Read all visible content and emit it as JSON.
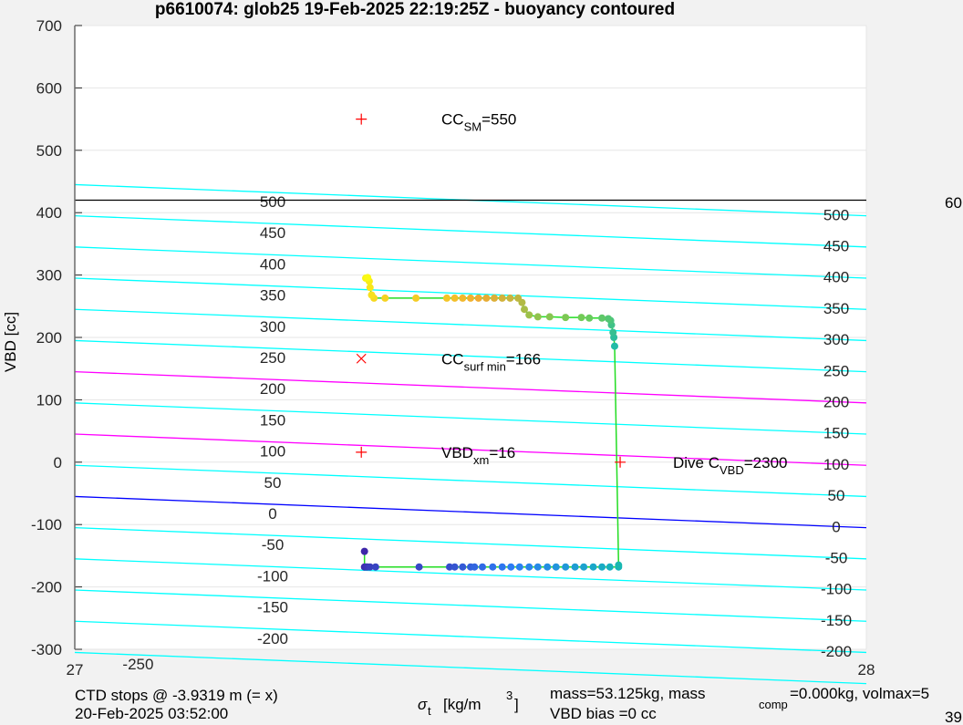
{
  "chart_data": {
    "type": "scatter",
    "title": "p6610074: glob25 19-Feb-2025 22:19:25Z - buoyancy contoured",
    "xlabel": {
      "main": "σ",
      "sub": "t",
      "unit": "[kg/m",
      "sup": "3",
      "close": "]"
    },
    "ylabel": "VBD [cc]",
    "xlim": [
      27,
      28
    ],
    "ylim": [
      -300,
      700
    ],
    "xticks": [
      27,
      28
    ],
    "xtick_labels": [
      "27",
      "28"
    ],
    "yticks": [
      -300,
      -200,
      -100,
      0,
      100,
      200,
      300,
      400,
      500,
      600,
      700
    ],
    "ytick_labels": [
      "-300",
      "-200",
      "-100",
      "0",
      "100",
      "200",
      "300",
      "400",
      "500",
      "600",
      "700"
    ],
    "grid": true,
    "contours": {
      "levels": [
        -250,
        -200,
        -150,
        -100,
        -50,
        0,
        50,
        100,
        150,
        200,
        250,
        300,
        350,
        400,
        450,
        500
      ],
      "labels_left": [
        "-250",
        "-200",
        "-150",
        "-100",
        "-50",
        "0",
        "50",
        "100",
        "150",
        "200",
        "250",
        "300",
        "350",
        "400",
        "450",
        "500"
      ],
      "labels_right": [
        "-200",
        "-150",
        "-100",
        "-50",
        "0",
        "50",
        "100",
        "150",
        "200",
        "250",
        "300",
        "350",
        "400",
        "450",
        "500"
      ],
      "vbd_at_x27_offset": 0,
      "slope_cc_per_sigma": -50,
      "base_vbd_at_level0_x27": -55,
      "colors": {
        "default": "#00ffff",
        "highlight": "#ff00ff",
        "zero": "#0000ff"
      },
      "highlight_levels": [
        100,
        200
      ],
      "zero_level": 0
    },
    "reference_line": {
      "vbd": 420,
      "color": "#000000"
    },
    "trajectory": {
      "line_color": "#22dd22",
      "colormap": "parula",
      "points": [
        [
          27.366,
          -143
        ],
        [
          27.366,
          -168
        ],
        [
          27.368,
          -168
        ],
        [
          27.37,
          -168
        ],
        [
          27.373,
          -168
        ],
        [
          27.38,
          -168
        ],
        [
          27.435,
          -168
        ],
        [
          27.4735,
          -168
        ],
        [
          27.48,
          -168
        ],
        [
          27.49,
          -168
        ],
        [
          27.5,
          -168
        ],
        [
          27.505,
          -168
        ],
        [
          27.515,
          -168
        ],
        [
          27.528,
          -168
        ],
        [
          27.54,
          -168
        ],
        [
          27.551,
          -168
        ],
        [
          27.562,
          -168
        ],
        [
          27.574,
          -168
        ],
        [
          27.585,
          -168
        ],
        [
          27.597,
          -168
        ],
        [
          27.608,
          -168
        ],
        [
          27.62,
          -168
        ],
        [
          27.632,
          -168
        ],
        [
          27.643,
          -168
        ],
        [
          27.655,
          -168
        ],
        [
          27.666,
          -168
        ],
        [
          27.676,
          -168
        ],
        [
          27.687,
          -168
        ],
        [
          27.687,
          -165
        ],
        [
          27.682,
          186
        ],
        [
          27.681,
          200
        ],
        [
          27.68,
          208
        ],
        [
          27.678,
          220
        ],
        [
          27.677,
          227
        ],
        [
          27.674,
          230
        ],
        [
          27.666,
          231
        ],
        [
          27.65,
          231
        ],
        [
          27.64,
          232
        ],
        [
          27.62,
          232
        ],
        [
          27.6,
          233
        ],
        [
          27.585,
          233
        ],
        [
          27.574,
          236
        ],
        [
          27.568,
          245
        ],
        [
          27.565,
          256
        ],
        [
          27.56,
          263
        ],
        [
          27.55,
          263
        ],
        [
          27.54,
          263
        ],
        [
          27.53,
          263
        ],
        [
          27.52,
          263
        ],
        [
          27.51,
          263
        ],
        [
          27.5,
          263
        ],
        [
          27.49,
          263
        ],
        [
          27.48,
          263
        ],
        [
          27.47,
          263
        ],
        [
          27.431,
          263
        ],
        [
          27.392,
          263
        ],
        [
          27.378,
          263
        ],
        [
          27.375,
          268
        ],
        [
          27.373,
          280
        ],
        [
          27.372,
          290
        ],
        [
          27.3675,
          295
        ],
        [
          27.37,
          296
        ]
      ]
    },
    "markers": [
      {
        "symbol": "+",
        "x": 27.362,
        "y": 550,
        "color": "#ff0000",
        "label": "CC",
        "sub": "SM",
        "value": "=550"
      },
      {
        "symbol": "x",
        "x": 27.362,
        "y": 166,
        "color": "#ff0000",
        "label": "CC",
        "sub": "surf min",
        "value": "=166"
      },
      {
        "symbol": "+",
        "x": 27.362,
        "y": 16,
        "color": "#ff0000",
        "label": "VBD",
        "sub": "xm",
        "value": "=16"
      },
      {
        "symbol": "+",
        "x": 27.689,
        "y": 0,
        "color": "#ff0000",
        "label": "Dive C",
        "sub": "VBD",
        "value": "=2300"
      }
    ],
    "annotations": {
      "ctd_stops": "CTD stops @ -3.9319 m (= x)",
      "ctd_time": "20-Feb-2025 03:52:00",
      "mass_prefix": "mass=53.125kg, mass",
      "mass_sub": "comp",
      "mass_suffix": "=0.000kg, volmax=5",
      "vbd_bias": "VBD bias =0 cc",
      "right_top_cut": "60",
      "right_bottom_cut": "39"
    }
  }
}
